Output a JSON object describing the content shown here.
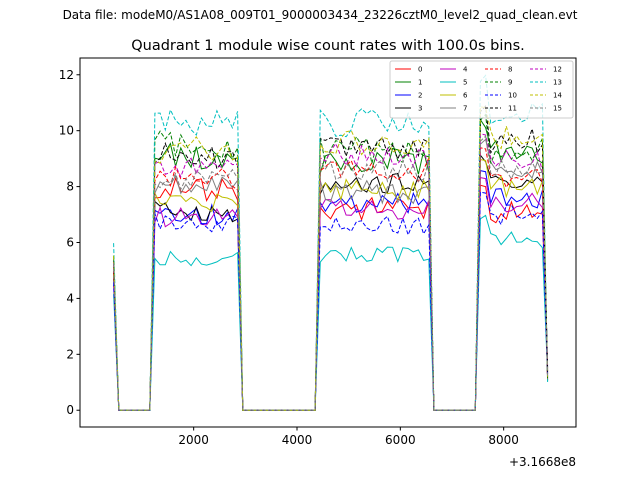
{
  "header": "Data file: modeM0/AS1A08_009T01_9000003434_23226cztM0_level2_quad_clean.evt",
  "chart_data": {
    "type": "line",
    "title": "Quadrant 1 module wise count rates with 100.0s bins.",
    "xlabel": "",
    "ylabel": "",
    "x_offset_text": "+3.1668e8",
    "xlim": [
      -200,
      9400
    ],
    "ylim": [
      -0.6,
      12.6
    ],
    "x_ticks": [
      2000,
      4000,
      6000,
      8000
    ],
    "x_tick_labels": [
      "2000",
      "4000",
      "6000",
      "8000"
    ],
    "y_ticks": [
      0,
      2,
      4,
      6,
      8,
      10,
      12
    ],
    "y_tick_labels": [
      "0",
      "2",
      "4",
      "6",
      "8",
      "10",
      "12"
    ],
    "legend_position": "top-right",
    "segments": [
      {
        "start": 450,
        "end": 530
      },
      {
        "start": 1200,
        "end": 2900
      },
      {
        "start": 4450,
        "end": 6590
      },
      {
        "start": 7550,
        "end": 8850
      }
    ],
    "series": [
      {
        "name": "0",
        "color": "#ff0000",
        "style": "solid",
        "levels": [
          5.0,
          7.9,
          7.2,
          7.1
        ]
      },
      {
        "name": "1",
        "color": "#008000",
        "style": "solid",
        "levels": [
          5.2,
          9.1,
          8.9,
          9.2
        ]
      },
      {
        "name": "2",
        "color": "#0000ff",
        "style": "solid",
        "levels": [
          4.5,
          7.0,
          7.4,
          7.6
        ]
      },
      {
        "name": "3",
        "color": "#000000",
        "style": "solid",
        "levels": [
          4.6,
          7.1,
          8.1,
          8.1
        ]
      },
      {
        "name": "4",
        "color": "#bf00bf",
        "style": "solid",
        "levels": [
          4.8,
          6.9,
          7.2,
          7.4
        ]
      },
      {
        "name": "5",
        "color": "#00bfbf",
        "style": "solid",
        "levels": [
          4.4,
          5.4,
          5.6,
          6.1
        ]
      },
      {
        "name": "6",
        "color": "#bfbf00",
        "style": "solid",
        "levels": [
          5.1,
          7.5,
          7.9,
          8.0
        ]
      },
      {
        "name": "7",
        "color": "#808080",
        "style": "solid",
        "levels": [
          4.9,
          8.1,
          7.8,
          8.5
        ]
      },
      {
        "name": "8",
        "color": "#ff0000",
        "style": "dashed",
        "levels": [
          5.1,
          8.3,
          8.6,
          8.4
        ]
      },
      {
        "name": "9",
        "color": "#008000",
        "style": "dashed",
        "levels": [
          5.4,
          9.5,
          9.3,
          9.3
        ]
      },
      {
        "name": "10",
        "color": "#0000ff",
        "style": "dashed",
        "levels": [
          4.6,
          6.7,
          6.6,
          7.0
        ]
      },
      {
        "name": "11",
        "color": "#000000",
        "style": "dashed",
        "levels": [
          5.3,
          9.1,
          9.3,
          9.6
        ]
      },
      {
        "name": "12",
        "color": "#bf00bf",
        "style": "dashed",
        "levels": [
          5.2,
          8.8,
          9.1,
          8.9
        ]
      },
      {
        "name": "13",
        "color": "#00bfbf",
        "style": "dashed",
        "levels": [
          5.8,
          10.3,
          10.3,
          10.6
        ]
      },
      {
        "name": "14",
        "color": "#bfbf00",
        "style": "dashed",
        "levels": [
          5.3,
          9.3,
          9.6,
          9.8
        ]
      },
      {
        "name": "15",
        "color": "#808080",
        "style": "dashed",
        "levels": [
          5.0,
          8.2,
          8.6,
          8.7
        ]
      }
    ]
  }
}
